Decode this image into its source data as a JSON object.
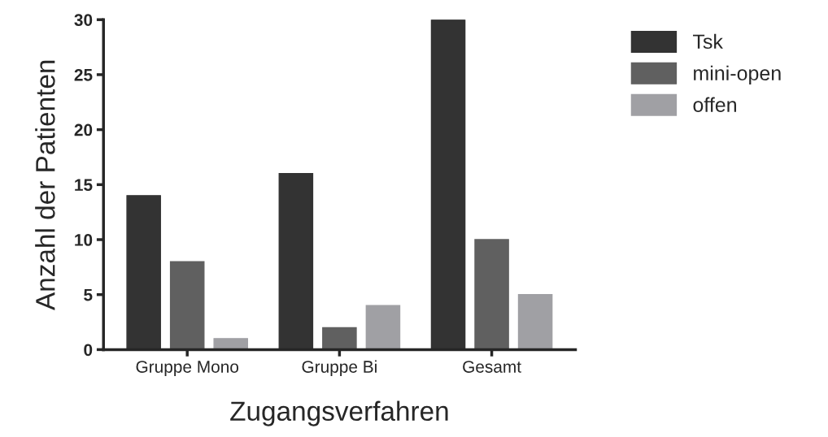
{
  "chart_data": {
    "type": "bar",
    "xlabel": "Zugangsverfahren",
    "ylabel": "Anzahl der Patienten",
    "categories": [
      "Gruppe Mono",
      "Gruppe Bi",
      "Gesamt"
    ],
    "series": [
      {
        "name": "Tsk",
        "color": "#333333",
        "values": [
          14,
          16,
          30
        ]
      },
      {
        "name": "mini-open",
        "color": "#606060",
        "values": [
          8,
          2,
          10
        ]
      },
      {
        "name": "offen",
        "color": "#a0a0a4",
        "values": [
          1,
          4,
          5
        ]
      }
    ],
    "ylim": [
      0,
      30
    ],
    "yticks": [
      0,
      5,
      10,
      15,
      20,
      25,
      30
    ],
    "grid": false,
    "legend": "top right"
  }
}
